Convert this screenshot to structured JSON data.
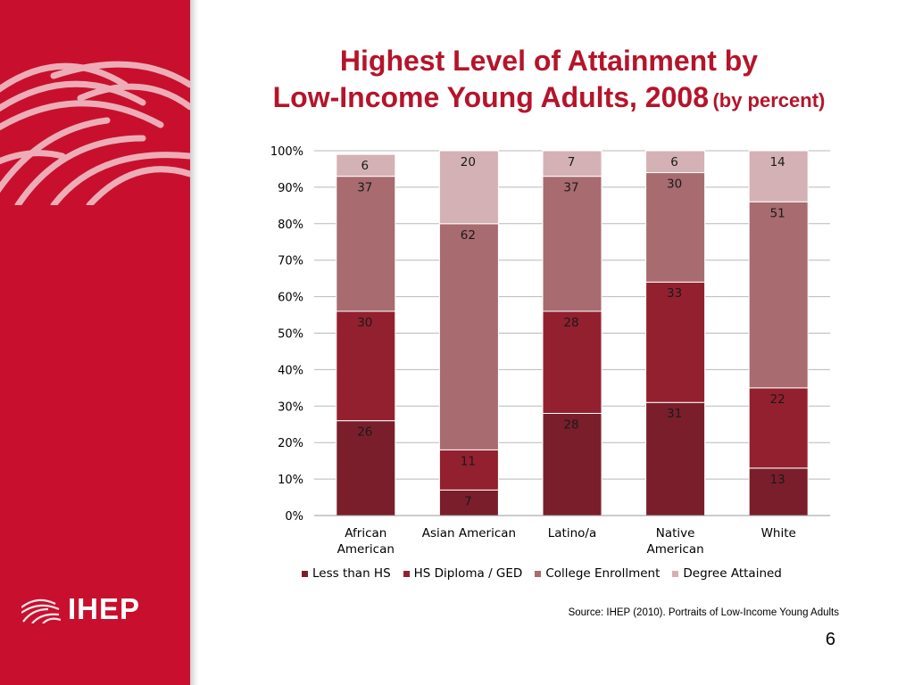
{
  "title": {
    "line1": "Highest Level of Attainment by",
    "line2": "Low-Income Young Adults, 2008",
    "subtitle": "(by percent)"
  },
  "logo": {
    "text": "IHEP"
  },
  "source": "Source:  IHEP (2010). Portraits of Low-Income Young Adults",
  "page_number": "6",
  "colors": {
    "sidebar": "#c8102e",
    "title": "#b5142a",
    "less_than_hs": "#7a1e2b",
    "hs_diploma": "#93202f",
    "college_enrollment": "#a86b70",
    "degree_attained": "#d4b1b4"
  },
  "chart_data": {
    "type": "bar",
    "stacked": true,
    "categories": [
      "African American",
      "Asian American",
      "Latino/a",
      "Native American",
      "White"
    ],
    "series": [
      {
        "name": "Less than HS",
        "values": [
          26,
          7,
          28,
          31,
          13
        ]
      },
      {
        "name": "HS Diploma / GED",
        "values": [
          30,
          11,
          28,
          33,
          22
        ]
      },
      {
        "name": "College Enrollment",
        "values": [
          37,
          62,
          37,
          30,
          51
        ]
      },
      {
        "name": "Degree Attained",
        "values": [
          6,
          20,
          7,
          6,
          14
        ]
      }
    ],
    "yticks": [
      "0%",
      "10%",
      "20%",
      "30%",
      "40%",
      "50%",
      "60%",
      "70%",
      "80%",
      "90%",
      "100%"
    ],
    "ylim": [
      0,
      100
    ],
    "grid": true,
    "legend_position": "bottom"
  }
}
